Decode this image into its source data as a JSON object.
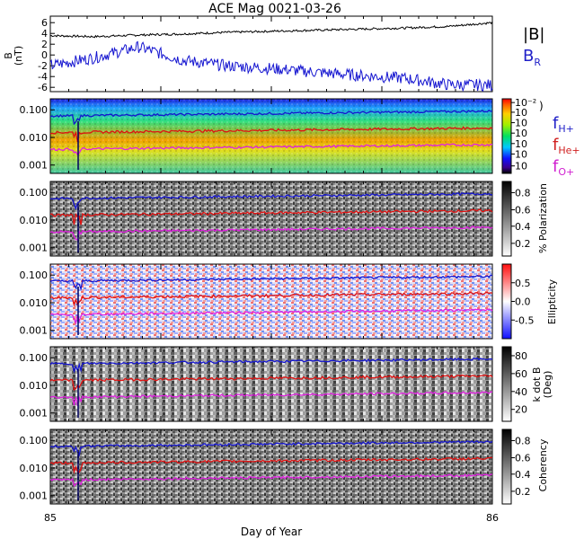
{
  "title": "ACE Mag 0021-03-26",
  "xlabel": "Day of Year",
  "x_ticks": [
    "85",
    "86"
  ],
  "legend_top": [
    {
      "label": "|B|",
      "color": "#000000"
    },
    {
      "label": "B",
      "sub": "R",
      "color": "#2020c8"
    }
  ],
  "legend_freq": [
    {
      "label": "f",
      "sub": "H+",
      "color": "#2020c8"
    },
    {
      "label": "f",
      "sub": "He+",
      "color": "#d02020"
    },
    {
      "label": "f",
      "sub": "O+",
      "color": "#d020d0"
    }
  ],
  "colors": {
    "blue": "#1515d0",
    "red": "#e01010",
    "magenta": "#e020e0",
    "black": "#000000"
  },
  "chart_data": [
    {
      "type": "line",
      "panel": "B",
      "ylabel": "B",
      "yunit": "(nT)",
      "yticks": [
        "6",
        "4",
        "2",
        "0",
        "-2",
        "-4",
        "-6"
      ],
      "ylim": [
        -6.8,
        7.2
      ],
      "x": [
        85.0,
        85.1,
        85.2,
        85.3,
        85.4,
        85.5,
        85.6,
        85.7,
        85.8,
        85.9,
        86.0
      ],
      "series": [
        {
          "name": "|B|",
          "values": [
            3.6,
            3.4,
            3.7,
            3.9,
            4.2,
            4.4,
            4.6,
            4.8,
            5.0,
            5.3,
            6.0
          ]
        },
        {
          "name": "B_R",
          "values": [
            -2.0,
            -0.5,
            1.5,
            -1.0,
            -2.0,
            -2.5,
            -3.2,
            -3.8,
            -4.3,
            -5.5,
            -5.6
          ]
        }
      ]
    },
    {
      "type": "heatmap",
      "panel": "power",
      "yticks": [
        "0.100",
        "0.010",
        "0.001"
      ],
      "colorbar_ticks": [
        "10⁻²",
        "10",
        "10",
        "10",
        "10",
        "10",
        "10"
      ],
      "colorbar_right_label": ")"
    },
    {
      "type": "heatmap",
      "panel": "polarization",
      "yticks": [
        "0.100",
        "0.010",
        "0.001"
      ],
      "colorbar_label": "% Polarization",
      "colorbar_ticks": [
        "0.8",
        "0.6",
        "0.4",
        "0.2"
      ]
    },
    {
      "type": "heatmap",
      "panel": "ellipticity",
      "yticks": [
        "0.100",
        "0.010",
        "0.001"
      ],
      "colorbar_label": "Ellipticity",
      "colorbar_ticks": [
        "0.5",
        "0.0",
        "-0.5"
      ]
    },
    {
      "type": "heatmap",
      "panel": "kdotB",
      "yticks": [
        "0.100",
        "0.010",
        "0.001"
      ],
      "colorbar_label": "k dot B",
      "colorbar_label2": "(Deg)",
      "colorbar_ticks": [
        "80",
        "60",
        "40",
        "20"
      ]
    },
    {
      "type": "heatmap",
      "panel": "coherency",
      "yticks": [
        "0.100",
        "0.010",
        "0.001"
      ],
      "colorbar_label": "Coherency",
      "colorbar_ticks": [
        "0.8",
        "0.6",
        "0.4",
        "0.2"
      ]
    }
  ],
  "freq_lines": {
    "x": [
      85.0,
      86.0
    ],
    "H+": [
      0.06,
      0.09
    ],
    "He+": [
      0.015,
      0.022
    ],
    "O+": [
      0.0037,
      0.0055
    ]
  }
}
